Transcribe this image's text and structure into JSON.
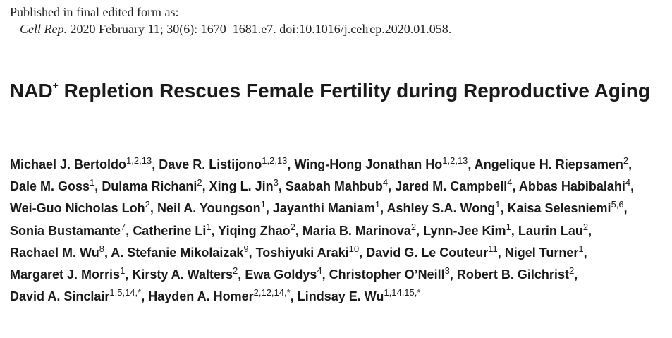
{
  "published": {
    "label": "Published in final edited form as:",
    "journal": "Cell Rep.",
    "citation": " 2020 February 11; 30(6): 1670–1681.e7. doi:10.1016/j.celrep.2020.01.058."
  },
  "title": {
    "pre": "NAD",
    "superscript": "+",
    "post": " Repletion Rescues Female Fertility during Reproductive Aging"
  },
  "authors": [
    {
      "name": "Michael J. Bertoldo",
      "aff": "1,2,13"
    },
    {
      "name": "Dave R. Listijono",
      "aff": "1,2,13"
    },
    {
      "name": "Wing-Hong Jonathan Ho",
      "aff": "1,2,13"
    },
    {
      "name": "Angelique H. Riepsamen",
      "aff": "2"
    },
    {
      "name": "Dale M. Goss",
      "aff": "1"
    },
    {
      "name": "Dulama Richani",
      "aff": "2"
    },
    {
      "name": "Xing L. Jin",
      "aff": "3"
    },
    {
      "name": "Saabah Mahbub",
      "aff": "4"
    },
    {
      "name": "Jared M. Campbell",
      "aff": "4"
    },
    {
      "name": "Abbas Habibalahi",
      "aff": "4"
    },
    {
      "name": "Wei-Guo Nicholas Loh",
      "aff": "2"
    },
    {
      "name": "Neil A. Youngson",
      "aff": "1"
    },
    {
      "name": "Jayanthi Maniam",
      "aff": "1"
    },
    {
      "name": "Ashley S.A. Wong",
      "aff": "1"
    },
    {
      "name": "Kaisa Selesniemi",
      "aff": "5,6"
    },
    {
      "name": "Sonia Bustamante",
      "aff": "7"
    },
    {
      "name": "Catherine Li",
      "aff": "1"
    },
    {
      "name": "Yiqing Zhao",
      "aff": "2"
    },
    {
      "name": "Maria B. Marinova",
      "aff": "2"
    },
    {
      "name": "Lynn-Jee Kim",
      "aff": "1"
    },
    {
      "name": "Laurin Lau",
      "aff": "2"
    },
    {
      "name": "Rachael M. Wu",
      "aff": "8"
    },
    {
      "name": "A. Stefanie Mikolaizak",
      "aff": "9"
    },
    {
      "name": "Toshiyuki Araki",
      "aff": "10"
    },
    {
      "name": "David G. Le Couteur",
      "aff": "11"
    },
    {
      "name": "Nigel Turner",
      "aff": "1"
    },
    {
      "name": "Margaret J. Morris",
      "aff": "1"
    },
    {
      "name": "Kirsty A. Walters",
      "aff": "2"
    },
    {
      "name": "Ewa Goldys",
      "aff": "4"
    },
    {
      "name": "Christopher O’Neill",
      "aff": "3"
    },
    {
      "name": "Robert B. Gilchrist",
      "aff": "2"
    },
    {
      "name": "David A. Sinclair",
      "aff": "1,5,14,*"
    },
    {
      "name": "Hayden A. Homer",
      "aff": "2,12,14,*"
    },
    {
      "name": "Lindsay E. Wu",
      "aff": "1,14,15,*"
    }
  ]
}
